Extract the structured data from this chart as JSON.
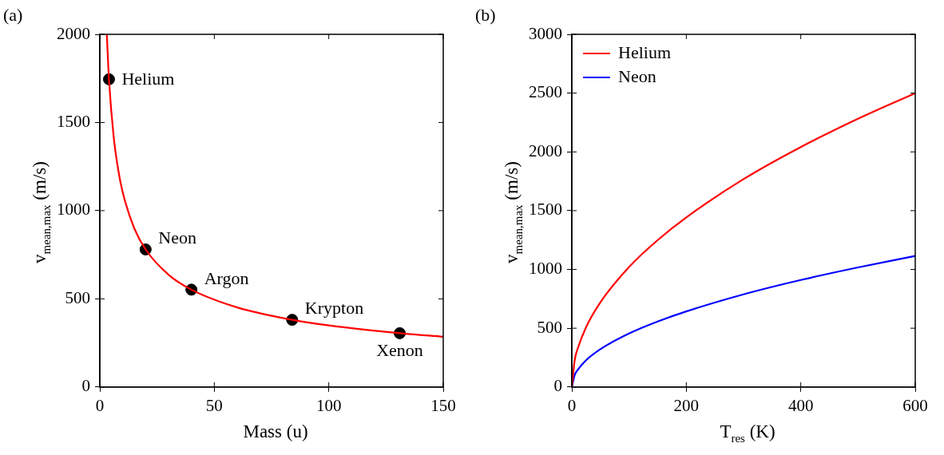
{
  "chart_data": [
    {
      "type": "line",
      "title": "(a)",
      "xlabel": "Mass  (u)",
      "ylabel": "v$_{mean,max}$ (m/s)",
      "xlim": [
        0,
        150
      ],
      "xticks": [
        0,
        50,
        100,
        150
      ],
      "ylim": [
        0,
        2000
      ],
      "yticks": [
        0,
        500,
        1000,
        1500,
        2000
      ],
      "grid": false,
      "legend": false,
      "series": [
        {
          "type": "line",
          "color": "#ff0000",
          "marker": "none",
          "x": [
            3.05,
            4,
            6,
            8,
            10,
            15,
            20,
            30,
            40,
            60,
            84,
            100,
            131,
            150
          ],
          "values": [
            2000,
            1745,
            1425,
            1234,
            1104,
            901,
            780,
            637,
            552,
            451,
            381,
            349,
            305,
            285
          ]
        },
        {
          "type": "scatter",
          "color": "#000000",
          "marker": "circle",
          "x": [
            4,
            20,
            40,
            84,
            131
          ],
          "values": [
            1745,
            780,
            552,
            381,
            305
          ]
        }
      ],
      "annotations": [
        {
          "text": "Helium",
          "x": 4,
          "y": 1745
        },
        {
          "text": "Neon",
          "x": 20,
          "y": 780
        },
        {
          "text": "Argon",
          "x": 40,
          "y": 552
        },
        {
          "text": "Krypton",
          "x": 84,
          "y": 381
        },
        {
          "text": "Xenon",
          "x": 131,
          "y": 305
        }
      ]
    },
    {
      "type": "line",
      "title": "(b)",
      "xlabel": "T$_{res}$ (K)",
      "ylabel": "v$_{mean,max}$ (m/s)",
      "xlim": [
        0,
        600
      ],
      "xticks": [
        0,
        200,
        400,
        600
      ],
      "ylim": [
        0,
        3000
      ],
      "yticks": [
        0,
        500,
        1000,
        1500,
        2000,
        2500,
        3000
      ],
      "grid": false,
      "legend": "top left",
      "marker": "none",
      "series": [
        {
          "name": "Helium",
          "color": "#ff0000",
          "x": [
            0,
            5,
            10,
            25,
            50,
            100,
            150,
            200,
            300,
            400,
            500,
            600
          ],
          "values": [
            0,
            228,
            323,
            510,
            721,
            1021,
            1250,
            1443,
            1768,
            2041,
            2282,
            2500
          ]
        },
        {
          "name": "Neon",
          "color": "#0000ff",
          "x": [
            0,
            5,
            10,
            25,
            50,
            100,
            150,
            200,
            300,
            400,
            500,
            600
          ],
          "values": [
            0,
            102,
            144,
            228,
            322,
            455,
            557,
            643,
            788,
            910,
            1017,
            1115
          ]
        }
      ]
    }
  ]
}
